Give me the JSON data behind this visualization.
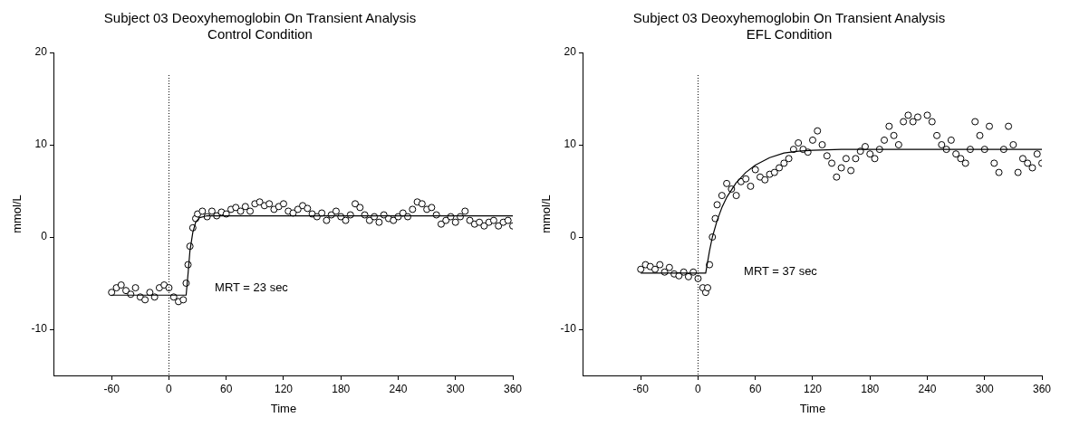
{
  "chart_data": [
    {
      "type": "scatter",
      "title": "Subject 03 Deoxyhemoglobin On Transient Analysis",
      "subtitle": "Control Condition",
      "xlabel": "Time",
      "ylabel": "mmol/L",
      "xlim": [
        -120,
        360
      ],
      "xticks": [
        -60,
        0,
        60,
        120,
        180,
        240,
        300,
        360
      ],
      "ylim": [
        -15,
        20
      ],
      "yticks": [
        -10,
        0,
        10,
        20
      ],
      "grid": false,
      "legend": false,
      "marker": "circle",
      "annotations": [
        "MRT = 23 sec"
      ],
      "ref_lines": [
        {
          "axis": "x",
          "value": 0,
          "line_style": "dotted",
          "color": "#000000"
        }
      ],
      "series": [
        {
          "color": "#000000",
          "x": [
            -60,
            -55,
            -50,
            -45,
            -40,
            -35,
            -30,
            -25,
            -20,
            -15,
            -10,
            -5,
            0,
            5,
            10,
            15,
            18,
            20,
            22,
            25,
            28,
            30,
            35,
            40,
            45,
            50,
            55,
            60,
            65,
            70,
            75,
            80,
            85,
            90,
            95,
            100,
            105,
            110,
            115,
            120,
            125,
            130,
            135,
            140,
            145,
            150,
            155,
            160,
            165,
            170,
            175,
            180,
            185,
            190,
            195,
            200,
            205,
            210,
            215,
            220,
            225,
            230,
            235,
            240,
            245,
            250,
            255,
            260,
            265,
            270,
            275,
            280,
            285,
            290,
            295,
            300,
            305,
            310,
            315,
            320,
            325,
            330,
            335,
            340,
            345,
            350,
            355,
            360
          ],
          "values": [
            -6,
            -5.5,
            -5.2,
            -5.8,
            -6.2,
            -5.5,
            -6.5,
            -6.8,
            -6,
            -6.5,
            -5.5,
            -5.2,
            -5.5,
            -6.5,
            -7,
            -6.8,
            -5,
            -3,
            -1,
            1,
            2,
            2.5,
            2.8,
            2.2,
            2.8,
            2.3,
            2.7,
            2.5,
            3,
            3.2,
            2.8,
            3.3,
            2.8,
            3.6,
            3.8,
            3.4,
            3.6,
            3,
            3.3,
            3.6,
            2.8,
            2.6,
            3,
            3.4,
            3.1,
            2.5,
            2.2,
            2.6,
            1.8,
            2.4,
            2.8,
            2.2,
            1.8,
            2.4,
            3.6,
            3.2,
            2.4,
            1.8,
            2.2,
            1.6,
            2.4,
            2,
            1.8,
            2.2,
            2.6,
            2.2,
            3,
            3.8,
            3.6,
            3,
            3.2,
            2.4,
            1.4,
            1.8,
            2.2,
            1.6,
            2.2,
            2.8,
            1.8,
            1.4,
            1.6,
            1.2,
            1.6,
            1.8,
            1.2,
            1.6,
            1.8,
            1.2
          ]
        },
        {
          "type": "line",
          "color": "#000000",
          "marker": "none",
          "x": [
            -60,
            18,
            20,
            22,
            25,
            28,
            32,
            40,
            360
          ],
          "values": [
            -6.3,
            -6.3,
            -4,
            -1.5,
            0.5,
            1.6,
            2.1,
            2.3,
            2.3
          ]
        }
      ]
    },
    {
      "type": "scatter",
      "title": "Subject 03 Deoxyhemoglobin On Transient Analysis",
      "subtitle": "EFL Condition",
      "xlabel": "Time",
      "ylabel": "mmol/L",
      "xlim": [
        -120,
        360
      ],
      "xticks": [
        -60,
        0,
        60,
        120,
        180,
        240,
        300,
        360
      ],
      "ylim": [
        -15,
        20
      ],
      "yticks": [
        -10,
        0,
        10,
        20
      ],
      "grid": false,
      "legend": false,
      "marker": "circle",
      "annotations": [
        "MRT = 37 sec"
      ],
      "ref_lines": [
        {
          "axis": "x",
          "value": 0,
          "line_style": "dotted",
          "color": "#000000"
        }
      ],
      "series": [
        {
          "color": "#000000",
          "x": [
            -60,
            -55,
            -50,
            -45,
            -40,
            -35,
            -30,
            -25,
            -20,
            -15,
            -10,
            -5,
            0,
            5,
            8,
            10,
            12,
            15,
            18,
            20,
            25,
            30,
            35,
            40,
            45,
            50,
            55,
            60,
            65,
            70,
            75,
            80,
            85,
            90,
            95,
            100,
            105,
            110,
            115,
            120,
            125,
            130,
            135,
            140,
            145,
            150,
            155,
            160,
            165,
            170,
            175,
            180,
            185,
            190,
            195,
            200,
            205,
            210,
            215,
            220,
            225,
            230,
            240,
            245,
            250,
            255,
            260,
            265,
            270,
            275,
            280,
            285,
            290,
            295,
            300,
            305,
            310,
            315,
            320,
            325,
            330,
            335,
            340,
            345,
            350,
            355,
            360
          ],
          "values": [
            -3.5,
            -3,
            -3.2,
            -3.5,
            -3,
            -3.8,
            -3.3,
            -4,
            -4.2,
            -3.8,
            -4.3,
            -3.8,
            -4.5,
            -5.5,
            -6,
            -5.5,
            -3,
            0,
            2,
            3.5,
            4.5,
            5.8,
            5.2,
            4.5,
            6,
            6.3,
            5.5,
            7.3,
            6.5,
            6.2,
            6.8,
            7,
            7.5,
            8,
            8.5,
            9.5,
            10.2,
            9.5,
            9.2,
            10.5,
            11.5,
            10,
            8.8,
            8,
            6.5,
            7.5,
            8.5,
            7.2,
            8.5,
            9.3,
            9.8,
            9,
            8.5,
            9.5,
            10.5,
            12,
            11,
            10,
            12.5,
            13.2,
            12.5,
            13,
            13.2,
            12.5,
            11,
            10,
            9.5,
            10.5,
            9,
            8.5,
            8,
            9.5,
            12.5,
            11,
            9.5,
            12,
            8,
            7,
            9.5,
            12,
            10,
            7,
            8.5,
            8,
            7.5,
            9,
            8
          ]
        },
        {
          "type": "line",
          "color": "#000000",
          "marker": "none",
          "x": [
            -60,
            8,
            12,
            15,
            20,
            25,
            30,
            40,
            50,
            60,
            75,
            90,
            105,
            120,
            150,
            360
          ],
          "values": [
            -3.9,
            -3.9,
            -1.5,
            0,
            1.8,
            3.2,
            4.3,
            5.9,
            7,
            7.8,
            8.6,
            9.1,
            9.3,
            9.4,
            9.5,
            9.5
          ]
        }
      ]
    }
  ]
}
